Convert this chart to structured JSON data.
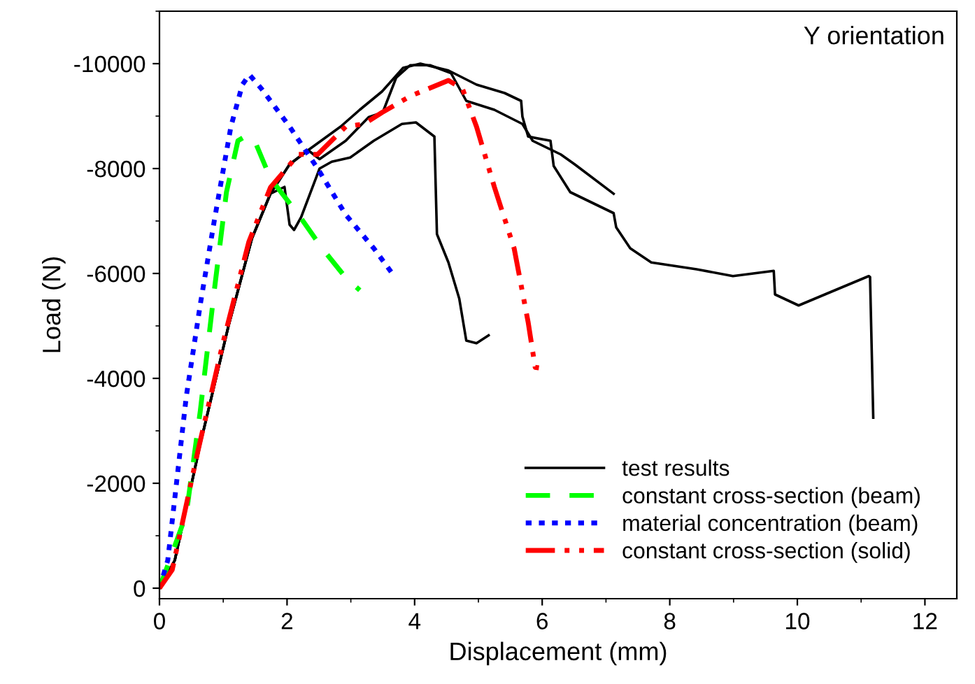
{
  "chart_data": {
    "type": "line",
    "xlabel": "Displacement (mm)",
    "ylabel": "Load (N)",
    "annotations": [
      "Y orientation"
    ],
    "xlim": [
      0,
      12.5
    ],
    "xticks": [
      0,
      2,
      4,
      6,
      8,
      10,
      12
    ],
    "ylim": [
      200,
      -11000
    ],
    "yticks": [
      0,
      -2000,
      -4000,
      -6000,
      -8000,
      -10000
    ],
    "grid": false,
    "legend": "bottom right",
    "series": [
      {
        "name": "test results",
        "color": "#000000",
        "line_style": "solid",
        "x": [
          0,
          0.24,
          0.64,
          1.08,
          1.45,
          1.74,
          1.96,
          2.04,
          2.11,
          2.22,
          2.51,
          2.7,
          2.99,
          3.36,
          3.8,
          4.02,
          4.31,
          4.35,
          4.53,
          4.7,
          4.81,
          4.97,
          5.16
        ],
        "values": [
          0,
          -530,
          -2750,
          -4990,
          -6670,
          -7520,
          -7650,
          -6930,
          -6830,
          -7070,
          -8000,
          -8130,
          -8210,
          -8530,
          -8850,
          -8880,
          -8610,
          -6750,
          -6210,
          -5520,
          -4720,
          -4670,
          -4820
        ]
      },
      {
        "color": "#000000",
        "line_style": "solid",
        "x": [
          0,
          0.24,
          0.64,
          1.08,
          1.45,
          1.74,
          2.04,
          2.33,
          2.51,
          2.92,
          3.28,
          3.5,
          3.71,
          3.93,
          4.24,
          4.57,
          4.81,
          5.25,
          5.69,
          5.85,
          6.29,
          6.51,
          7.12
        ],
        "values": [
          0,
          -530,
          -2750,
          -4990,
          -6670,
          -7520,
          -8080,
          -8350,
          -8180,
          -8530,
          -8980,
          -9070,
          -9730,
          -9970,
          -9970,
          -9820,
          -9290,
          -9120,
          -8850,
          -8530,
          -8270,
          -8080,
          -7520
        ]
      },
      {
        "color": "#000000",
        "line_style": "solid",
        "x": [
          0,
          0.24,
          0.64,
          1.08,
          1.45,
          1.74,
          2.04,
          2.33,
          2.84,
          3.14,
          3.49,
          3.82,
          4.09,
          4.53,
          4.97,
          5.41,
          5.67,
          5.69,
          5.78,
          6.13,
          6.18,
          6.44,
          7.12,
          7.16,
          7.38,
          7.71,
          8.42,
          8.99,
          9.63,
          9.65,
          10.02,
          10.53,
          11.12,
          11.14,
          11.19
        ],
        "values": [
          0,
          -530,
          -2750,
          -4990,
          -6670,
          -7520,
          -8080,
          -8350,
          -8800,
          -9120,
          -9470,
          -9920,
          -10000,
          -9870,
          -9600,
          -9440,
          -9290,
          -8990,
          -8610,
          -8530,
          -8050,
          -7550,
          -7150,
          -6880,
          -6480,
          -6210,
          -6080,
          -5950,
          -6050,
          -5600,
          -5390,
          -5650,
          -5950,
          -5930,
          -3250
        ]
      },
      {
        "name": "constant cross-section (beam)",
        "color": "#00ff00",
        "line_style": "dashed",
        "x": [
          0,
          0.42,
          0.64,
          0.86,
          1.05,
          1.23,
          1.38,
          1.52,
          1.74,
          2.18,
          2.55,
          2.92,
          3.14
        ],
        "values": [
          0,
          -1410,
          -3380,
          -5680,
          -7550,
          -8530,
          -8640,
          -8450,
          -7810,
          -7120,
          -6480,
          -5920,
          -5680
        ]
      },
      {
        "name": "material concentration (beam)",
        "color": "#0000ff",
        "line_style": "dotted",
        "x": [
          0,
          0.13,
          0.42,
          0.64,
          0.86,
          1.12,
          1.3,
          1.41,
          1.6,
          2.04,
          2.48,
          2.92,
          3.36,
          3.65
        ],
        "values": [
          0,
          -530,
          -3650,
          -5410,
          -7010,
          -8800,
          -9600,
          -9790,
          -9520,
          -8800,
          -8000,
          -7120,
          -6480,
          -6000
        ]
      },
      {
        "name": "constant cross-section (solid)",
        "color": "#ff0000",
        "line_style": "dashdotdot",
        "x": [
          0,
          0.2,
          0.6,
          1.0,
          1.4,
          1.74,
          2.18,
          2.48,
          2.92,
          3.21,
          3.49,
          3.93,
          4.53,
          4.75,
          4.97,
          5.25,
          5.56,
          5.78,
          5.89,
          6.0
        ],
        "values": [
          0,
          -350,
          -2600,
          -4700,
          -6600,
          -7640,
          -8270,
          -8270,
          -8800,
          -8850,
          -9070,
          -9380,
          -9680,
          -9520,
          -8800,
          -7650,
          -6480,
          -5070,
          -4210,
          -4190
        ]
      }
    ]
  }
}
